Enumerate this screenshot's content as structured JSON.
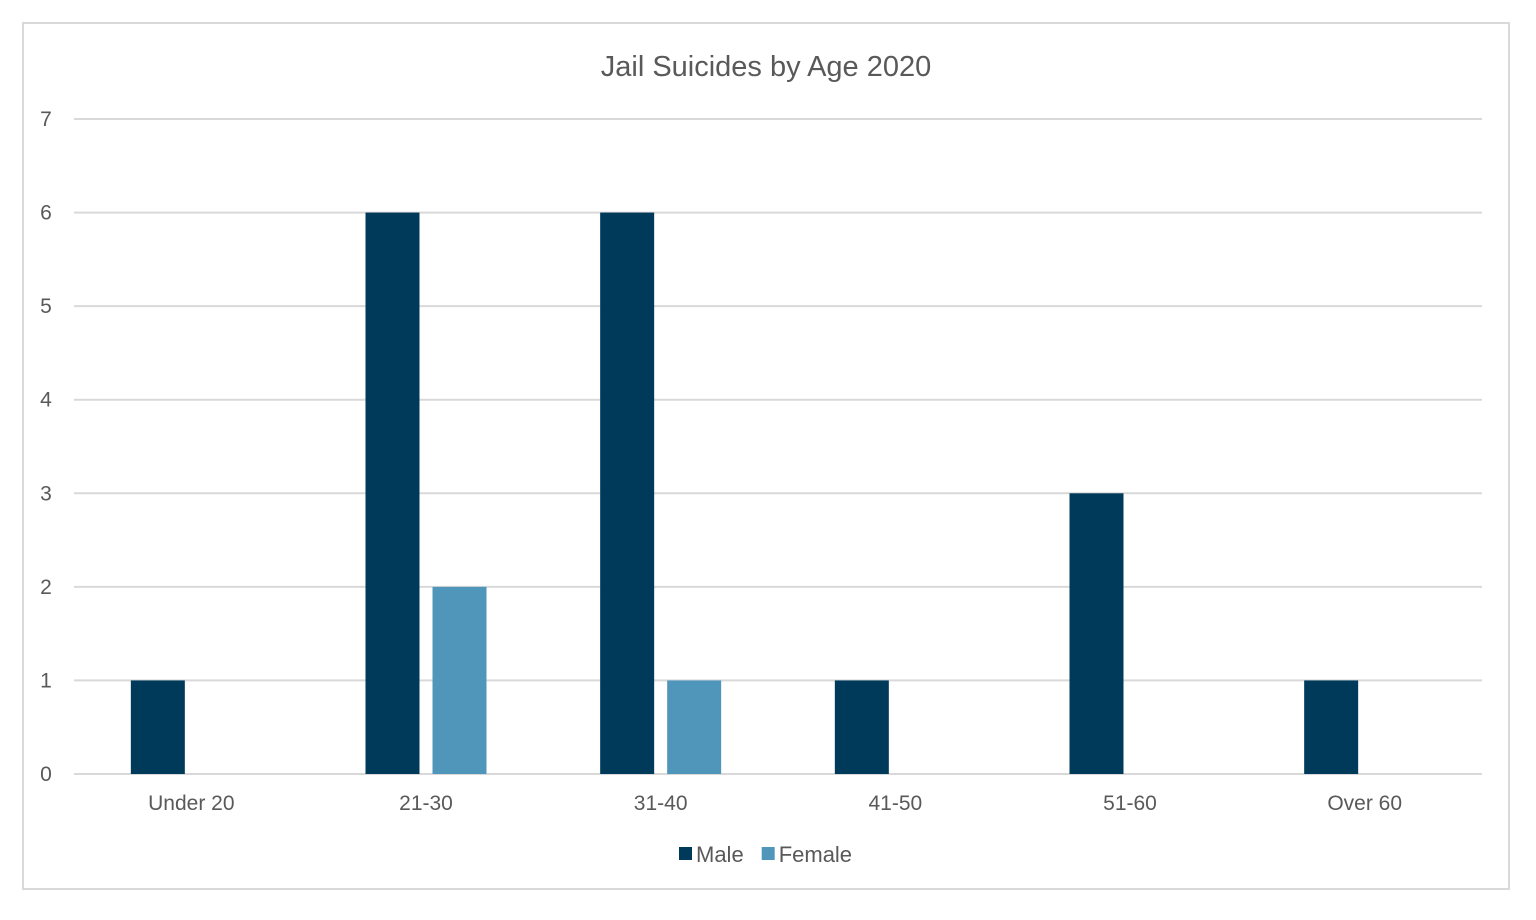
{
  "chart_data": {
    "type": "bar",
    "title": "Jail Suicides by Age 2020",
    "categories": [
      "Under 20",
      "21-30",
      "31-40",
      "41-50",
      "51-60",
      "Over 60"
    ],
    "series": [
      {
        "name": "Male",
        "values": [
          1,
          6,
          6,
          1,
          3,
          1
        ],
        "color": "#003a5a"
      },
      {
        "name": "Female",
        "values": [
          0,
          2,
          1,
          0,
          0,
          0
        ],
        "color": "#5096bb"
      }
    ],
    "ylim": [
      0,
      7
    ],
    "yticks": [
      "0",
      "1",
      "2",
      "3",
      "4",
      "5",
      "6",
      "7"
    ],
    "grid": true,
    "gridColor": "#d9d9d9",
    "legend": "bottom-center"
  }
}
